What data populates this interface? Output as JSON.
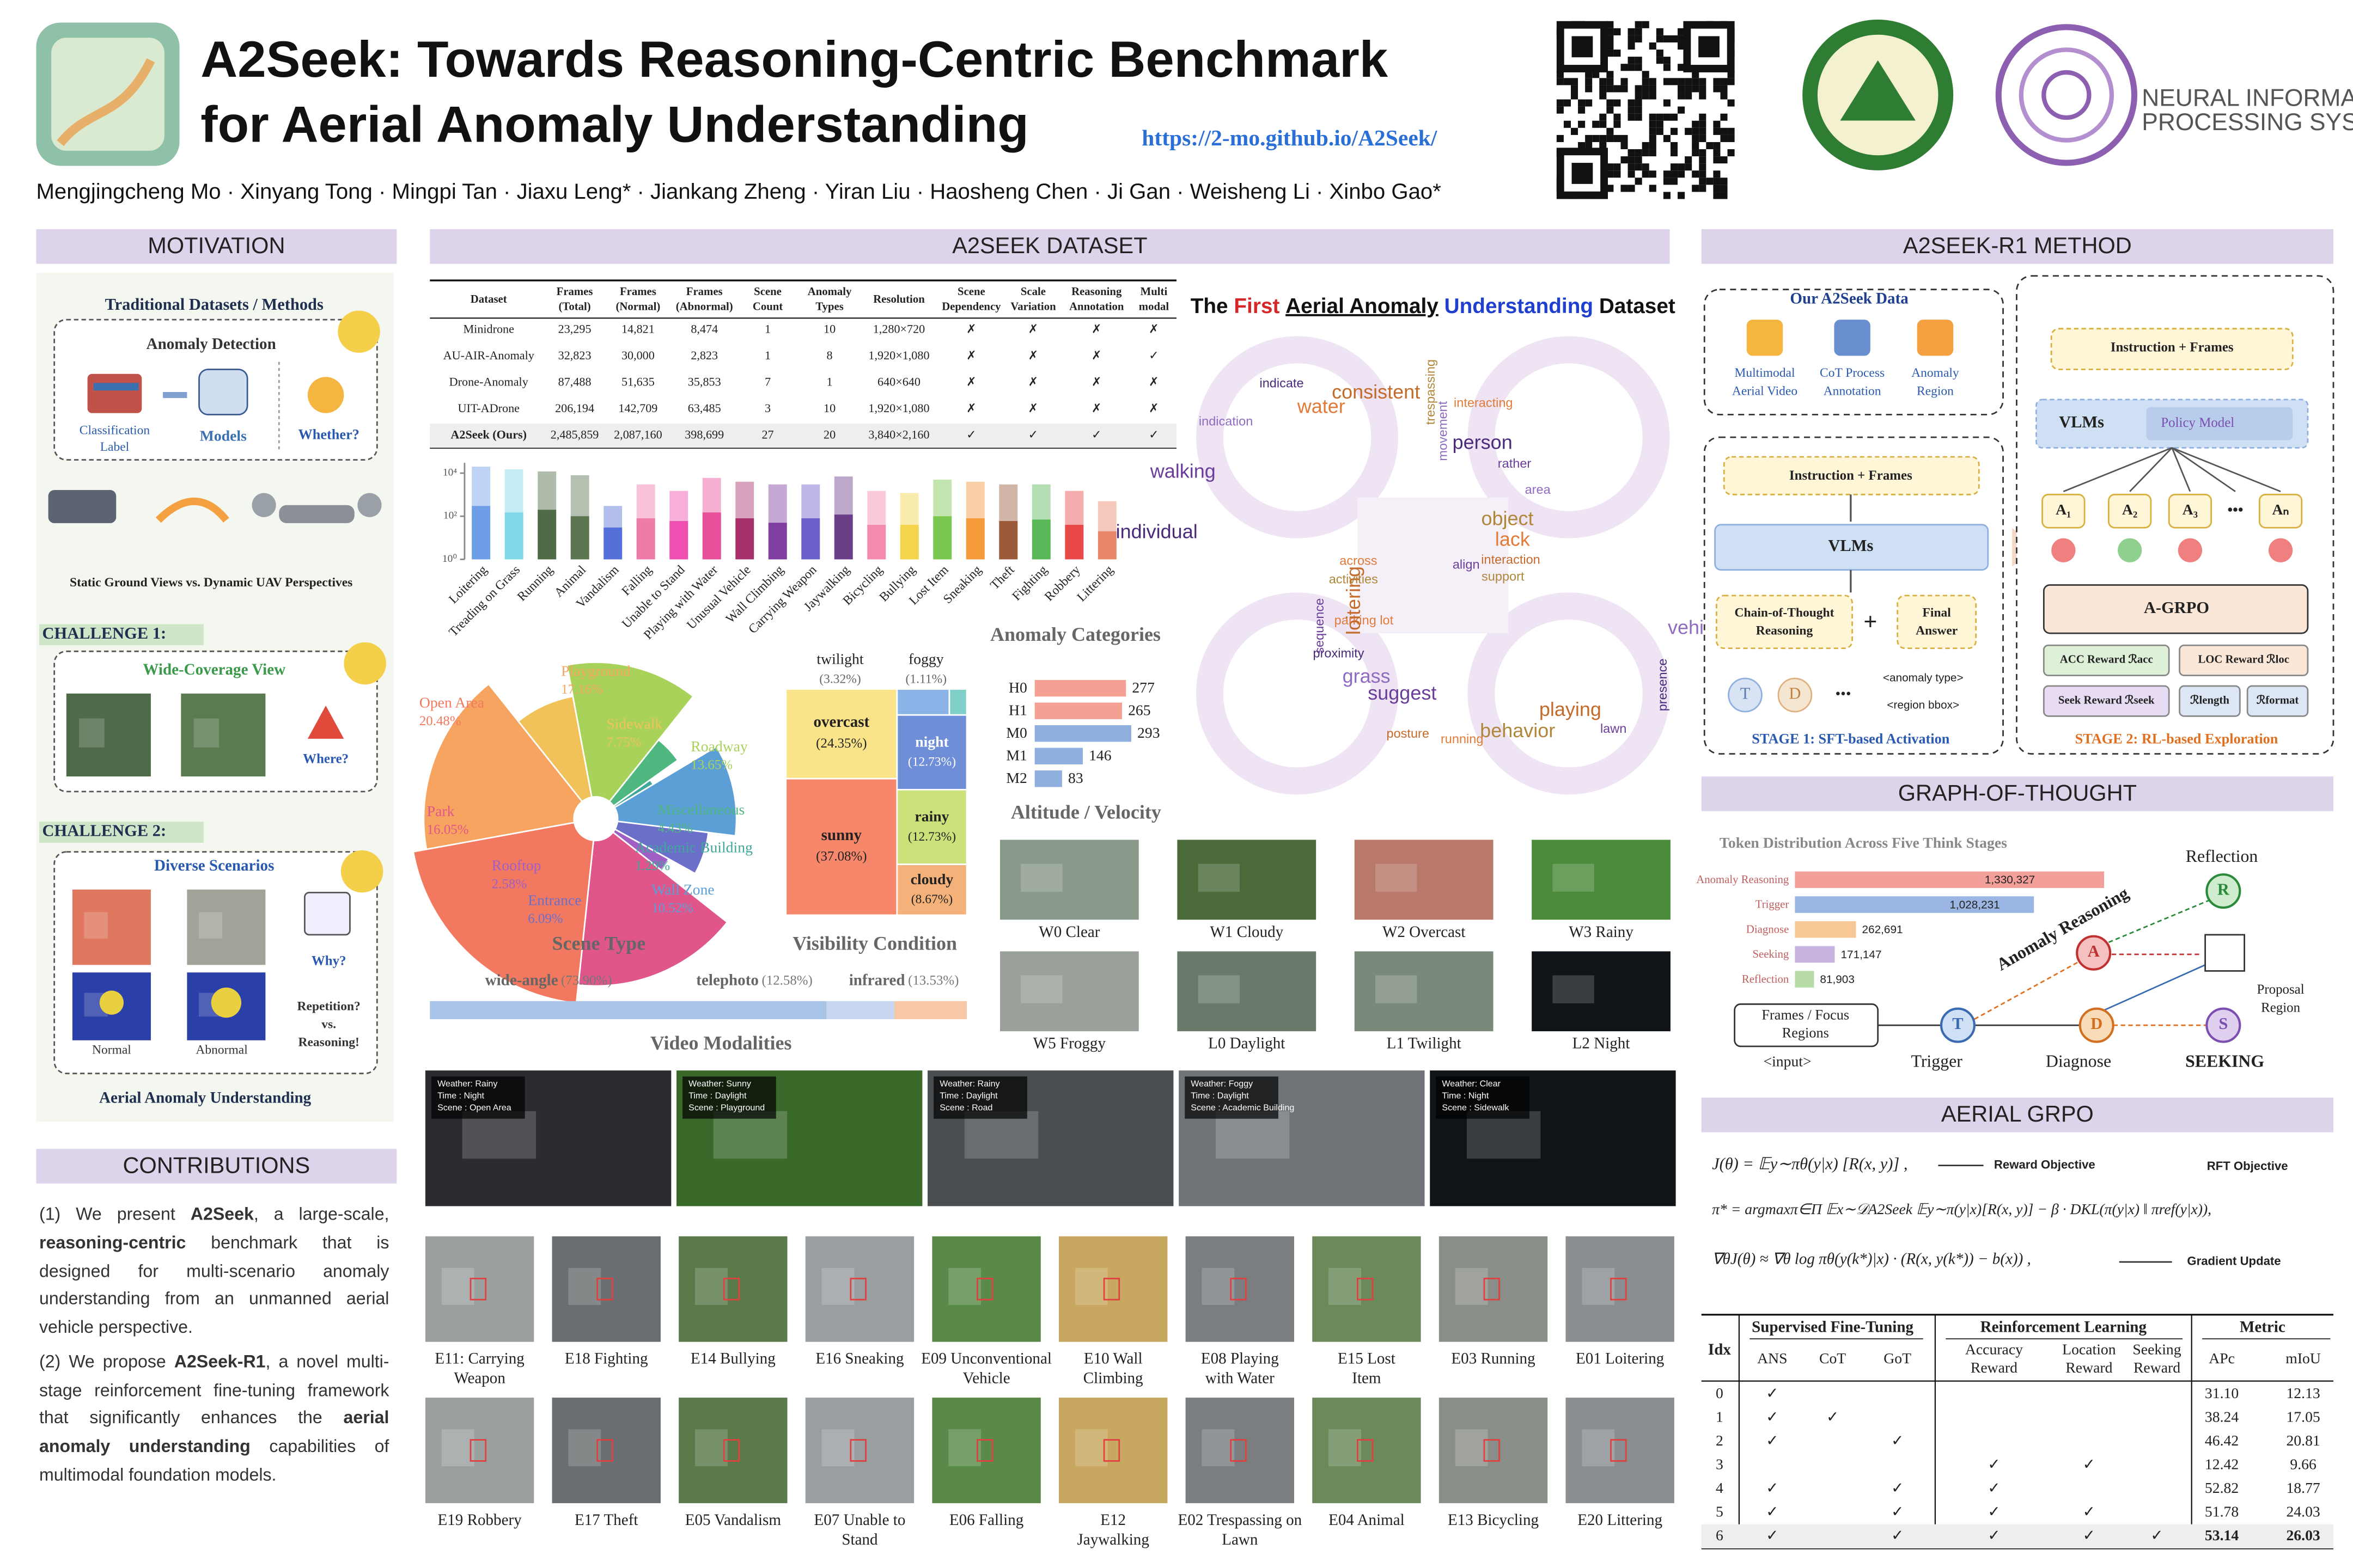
{
  "header": {
    "title_lines": [
      "A2Seek: Towards Reasoning-Centric Benchmark",
      "for Aerial Anomaly Understanding"
    ],
    "url": "https://2-mo.github.io/A2Seek/",
    "authors": "Mengjingcheng Mo · Xinyang Tong · Mingpi Tan · Jiaxu Leng* · Jiankang Zheng · Yiran Liu · Haosheng Chen · Ji Gan · Weisheng Li · Xinbo Gao*",
    "conference": [
      "NEURAL INFORMATION",
      "PROCESSING SYSTEMS"
    ]
  },
  "motivation": {
    "title": "MOTIVATION",
    "traditional": "Traditional Datasets / Methods",
    "detection": "Anomaly Detection",
    "label": [
      "Classification",
      "Label"
    ],
    "models": "Models",
    "whether": "Whether?",
    "views": "Static Ground Views vs. Dynamic UAV Perspectives",
    "challenge1": "CHALLENGE 1:",
    "wide": "Wide-Coverage View",
    "where": "Where?",
    "challenge2": "CHALLENGE 2:",
    "diverse": "Diverse Scenarios",
    "why": "Why?",
    "repetition": [
      "Repetition?",
      "vs.",
      "Reasoning!"
    ],
    "normal": "Normal",
    "abnormal": "Abnormal",
    "footer": "Aerial Anomaly Understanding"
  },
  "contributions": {
    "title": "CONTRIBUTIONS",
    "items": [
      [
        {
          "text": "(1) We present "
        },
        {
          "text": "A2Seek",
          "bold": true
        },
        {
          "text": ", a large-scale, "
        },
        {
          "text": "reasoning-centric",
          "bold": true
        },
        {
          "text": " benchmark that is designed for multi-scenario anomaly understanding from an unmanned aerial vehicle perspective."
        }
      ],
      [
        {
          "text": "(2) We propose "
        },
        {
          "text": "A2Seek-R1",
          "bold": true
        },
        {
          "text": ", a novel multi-stage reinforcement fine-tuning framework that significantly enhances the "
        },
        {
          "text": "aerial anomaly understanding",
          "bold": true
        },
        {
          "text": " capabilities of multimodal foundation models."
        }
      ]
    ]
  },
  "dataset": {
    "title": "A2SEEK DATASET",
    "table": {
      "header": [
        [
          "Dataset"
        ],
        [
          "Frames",
          "(Total)"
        ],
        [
          "Frames",
          "(Normal)"
        ],
        [
          "Frames",
          "(Abnormal)"
        ],
        [
          "Scene",
          "Count"
        ],
        [
          "Anomaly",
          "Types"
        ],
        [
          "Resolution"
        ],
        [
          "Scene",
          "Dependency"
        ],
        [
          "Scale",
          "Variation"
        ],
        [
          "Reasoning",
          "Annotation"
        ],
        [
          "Multi",
          "modal"
        ]
      ],
      "rows": [
        [
          "Minidrone",
          "23,295",
          "14,821",
          "8,474",
          "1",
          "10",
          "1,280×720",
          "✗",
          "✗",
          "✗",
          "✗"
        ],
        [
          "AU-AIR-Anomaly",
          "32,823",
          "30,000",
          "2,823",
          "1",
          "8",
          "1,920×1,080",
          "✗",
          "✗",
          "✗",
          "✓"
        ],
        [
          "Drone-Anomaly",
          "87,488",
          "51,635",
          "35,853",
          "7",
          "1",
          "640×640",
          "✗",
          "✗",
          "✗",
          "✗"
        ],
        [
          "UIT-ADrone",
          "206,194",
          "142,709",
          "63,485",
          "3",
          "10",
          "1,920×1,080",
          "✗",
          "✗",
          "✗",
          "✗"
        ],
        [
          "A2Seek (Ours)",
          "2,485,859",
          "2,087,160",
          "398,699",
          "27",
          "20",
          "3,840×2,160",
          "✓",
          "✓",
          "✓",
          "✓"
        ]
      ]
    },
    "wordcloud_title": [
      {
        "text": "The "
      },
      {
        "text": "First",
        "color": "#d62728"
      },
      {
        "text": " "
      },
      {
        "text": "Aerial Anomaly",
        "underline": true
      },
      {
        "text": " "
      },
      {
        "text": "Understanding",
        "color": "#1f3fcf"
      },
      {
        "text": " Dataset"
      }
    ],
    "words": [
      "align",
      "parking lot",
      "movement",
      "playing",
      "individual",
      "object",
      "suggest",
      "water",
      "vehicle",
      "loitering",
      "person",
      "behavior",
      "walking",
      "lack",
      "grass",
      "consistent",
      "presence",
      "activities",
      "rather",
      "running",
      "indication",
      "interaction",
      "proximity",
      "trespassing",
      "lawn",
      "across",
      "area",
      "posture",
      "indicate",
      "support",
      "sequence",
      "interacting"
    ],
    "weather": [
      [
        "W0 Clear"
      ],
      [
        "W1 Cloudy"
      ],
      [
        "W2 Overcast"
      ],
      [
        "W3 Rainy"
      ],
      [
        "W5 Froggy"
      ],
      [
        "L0 Daylight"
      ],
      [
        "L1 Twilight"
      ],
      [
        "L2 Night"
      ]
    ],
    "videos": [
      [
        "Weather: Rainy",
        "Time : Night",
        "Scene : Open Area"
      ],
      [
        "Weather: Sunny",
        "Time : Daylight",
        "Scene : Playground"
      ],
      [
        "Weather: Rainy",
        "Time : Daylight",
        "Scene : Road"
      ],
      [
        "Weather: Foggy",
        "Time : Daylight",
        "Scene : Academic Building"
      ],
      [
        "Weather: Clear",
        "Time : Night",
        "Scene : Sidewalk"
      ]
    ],
    "examples": [
      [
        "E11: Carrying",
        "Weapon"
      ],
      [
        "E18 Fighting"
      ],
      [
        "E14 Bullying"
      ],
      [
        "E16 Sneaking"
      ],
      [
        "E09 Unconventional",
        "Vehicle"
      ],
      [
        "E10 Wall",
        "Climbing"
      ],
      [
        "E08 Playing",
        "with Water"
      ],
      [
        "E15 Lost",
        "Item"
      ],
      [
        "E03 Running"
      ],
      [
        "E01 Loitering"
      ],
      [
        "E19 Robbery"
      ],
      [
        "E17 Theft"
      ],
      [
        "E05 Vandalism"
      ],
      [
        "E07 Unable to",
        "Stand"
      ],
      [
        "E06 Falling"
      ],
      [
        "E12",
        "Jaywalking"
      ],
      [
        "E02 Trespassing on",
        "Lawn"
      ],
      [
        "E04 Animal"
      ],
      [
        "E13 Bicycling"
      ],
      [
        "E20 Littering"
      ]
    ]
  },
  "chart_data": [
    {
      "type": "bar",
      "title": "Anomaly Categories",
      "log_scale": true,
      "categories": [
        "Loitering",
        "Treading on Grass",
        "Running",
        "Animal",
        "Vandalism",
        "Falling",
        "Unable to Stand",
        "Playing with Water",
        "Unusual Vehicle",
        "Wall Climbing",
        "Carrying Weapon",
        "Jaywalking",
        "Bicycling",
        "Bullying",
        "Lost Item",
        "Sneaking",
        "Theft",
        "Fighting",
        "Robbery",
        "Littering"
      ],
      "colors": [
        "#6f9ee8",
        "#7fd7e8",
        "#4f6b45",
        "#5b7550",
        "#5570d8",
        "#f07aa8",
        "#ef4fb0",
        "#e8509a",
        "#a6306a",
        "#7f3fa0",
        "#6a5fc8",
        "#6b3e8a",
        "#f48ab0",
        "#f4d44a",
        "#7ac850",
        "#f49a3a",
        "#9a5a3a",
        "#58b858",
        "#e84848",
        "#e8866a"
      ],
      "series": [
        {
          "values": [
            20000,
            15000,
            12000,
            8000,
            300,
            3000,
            1500,
            6000,
            4000,
            3000,
            3000,
            7000,
            1500,
            1200,
            5000,
            4000,
            3000,
            3000,
            1500,
            500
          ]
        },
        {
          "values": [
            300,
            150,
            200,
            100,
            30,
            80,
            60,
            150,
            80,
            50,
            80,
            120,
            40,
            40,
            100,
            80,
            60,
            70,
            40,
            20
          ]
        }
      ],
      "ylim": [
        1,
        30000
      ],
      "yticks": [
        {
          "value": 1,
          "label": "10⁰"
        },
        {
          "value": 100,
          "label": "10²"
        },
        {
          "value": 10000,
          "label": "10⁴"
        }
      ]
    },
    {
      "type": "rose",
      "title": "Scene Type",
      "categories": [
        "Playground",
        "Sidewalk",
        "Roadway",
        "Miscellaneous",
        "Academic Building",
        "Wall Zone",
        "Entrance",
        "Rooftop",
        "Park",
        "Open Area"
      ],
      "values": [
        17.16,
        7.75,
        13.65,
        4.43,
        1.29,
        10.52,
        6.09,
        2.58,
        16.05,
        20.48
      ],
      "value_labels": [
        "17.16%",
        "7.75%",
        "13.65%",
        "4.43%",
        "1.29%",
        "10.52%",
        "6.09%",
        "2.58%",
        "16.05%",
        "20.48%"
      ],
      "colors": [
        "#f6a460",
        "#f2c25a",
        "#a8d25a",
        "#4fb880",
        "#3fa89a",
        "#5b9fd6",
        "#6c6fc9",
        "#9f5fc4",
        "#e0568a",
        "#f2795f"
      ]
    },
    {
      "type": "treemap",
      "title": "Visibility Condition",
      "categories": [
        "overcast",
        "sunny",
        "twilight",
        "foggy",
        "night",
        "rainy",
        "cloudy"
      ],
      "values": [
        24.35,
        37.08,
        3.32,
        1.11,
        12.73,
        12.73,
        8.67
      ],
      "value_labels": [
        "(24.35%)",
        "(37.08%)",
        "(3.32%)",
        "(1.11%)",
        "(12.73%)",
        "(12.73%)",
        "(8.67%)"
      ],
      "colors": [
        "#fbe38a",
        "#f7876a",
        "#8ab4e8",
        "#7fd0c8",
        "#6f8ed8",
        "#cce17a",
        "#f4b27a"
      ]
    },
    {
      "type": "hbar",
      "title": "Altitude / Velocity",
      "categories": [
        "H0",
        "H1",
        "M0",
        "M1",
        "M2"
      ],
      "values": [
        277,
        265,
        293,
        146,
        83
      ],
      "colors": [
        "#f4a093",
        "#f4a093",
        "#8fb0de",
        "#8fb0de",
        "#8fb0de"
      ]
    },
    {
      "type": "stacked_hbar",
      "title": "Video Modalities",
      "categories": [
        "wide-angle",
        "telephoto",
        "infrared"
      ],
      "values": [
        73.9,
        12.58,
        13.53
      ],
      "value_labels": [
        "(73.90%)",
        "(12.58%)",
        "(13.53%)"
      ],
      "colors": [
        "#aac4e8",
        "#c7d6ee",
        "#f7c7a8"
      ]
    },
    {
      "type": "hbar",
      "title": "Token Distribution Across Five Think Stages",
      "categories": [
        "Anomaly Reasoning",
        "Trigger",
        "Diagnose",
        "Seeking",
        "Reflection"
      ],
      "values": [
        1330327,
        1028231,
        262691,
        171147,
        81903
      ],
      "value_labels": [
        "1,330,327",
        "1,028,231",
        "262,691",
        "171,147",
        "81,903"
      ],
      "colors": [
        "#f4a09a",
        "#9cb6e3",
        "#f7c896",
        "#c8b2e0",
        "#b7dba6"
      ]
    }
  ],
  "method": {
    "title": "A2SEEK-R1 METHOD",
    "data_title": "Our A2Seek Data",
    "data_items": [
      [
        "Multimodal",
        "Aerial Video"
      ],
      [
        "CoT Process",
        "Annotation"
      ],
      [
        "Anomaly",
        "Region"
      ]
    ],
    "stage1": {
      "input": "Instruction + Frames",
      "model": "VLMs",
      "cot": [
        "Chain-of-Thought",
        "Reasoning"
      ],
      "plus": "+",
      "answer": [
        "Final",
        "Answer"
      ],
      "tags": [
        "<anomaly type>",
        "<region bbox>"
      ],
      "tokens": [
        "T",
        "D",
        "•••"
      ],
      "label": "STAGE 1: SFT-based Activation"
    },
    "stage2": {
      "input": "Instruction + Frames",
      "model": "VLMs",
      "policy": "Policy Model",
      "answers": [
        "A₁",
        "A₂",
        "A₃",
        "•••",
        "Aₙ"
      ],
      "algo": "A-GRPO",
      "rewards": [
        "ACC Reward ℛacc",
        "LOC Reward ℛloc",
        "Seek Reward ℛseek",
        "ℛlength",
        "ℛformat"
      ],
      "label": "STAGE 2: RL-based Exploration"
    }
  },
  "got": {
    "title": "GRAPH-OF-THOUGHT",
    "input": [
      "Frames / Focus",
      "Regions"
    ],
    "input_tag": "<input>",
    "nodes": [
      "T",
      "D",
      "A",
      "R",
      "S"
    ],
    "node_labels": [
      "Trigger",
      "Diagnose",
      "Anomaly Reasoning",
      "Reflection",
      "SEEKING"
    ],
    "proposal": [
      "Proposal",
      "Region"
    ]
  },
  "grpo": {
    "title": "AERIAL GRPO",
    "formulas": [
      "J(θ) = 𝔼y∼πθ(y|x) [R(x, y)] ,",
      "π* = argmaxπ∈Π 𝔼x∼𝒟A2Seek 𝔼y∼π(y|x)[R(x, y)] − β · DKL(π(y|x) ‖ πref(y|x)),",
      "∇θJ(θ) ≈ ∇θ log πθ(y(k*)|x) · (R(x, y(k*)) − b(x)) ,"
    ],
    "notes": [
      "Reward Objective",
      "RFT Objective",
      "Gradient Update"
    ]
  },
  "results": {
    "groups": [
      "Idx",
      "Supervised Fine-Tuning",
      "Reinforcement Learning",
      "Metric"
    ],
    "columns": [
      [
        "ANS"
      ],
      [
        "CoT"
      ],
      [
        "GoT"
      ],
      [
        "Accuracy",
        "Reward"
      ],
      [
        "Location",
        "Reward"
      ],
      [
        "Seeking",
        "Reward"
      ],
      [
        "APc"
      ],
      [
        "mIoU"
      ]
    ],
    "rows": [
      [
        "0",
        "✓",
        null,
        null,
        null,
        null,
        null,
        "31.10",
        "12.13"
      ],
      [
        "1",
        "✓",
        "✓",
        null,
        null,
        null,
        null,
        "38.24",
        "17.05"
      ],
      [
        "2",
        "✓",
        null,
        "✓",
        null,
        null,
        null,
        "46.42",
        "20.81"
      ],
      [
        "3",
        null,
        null,
        null,
        "✓",
        "✓",
        null,
        "12.42",
        "9.66"
      ],
      [
        "4",
        "✓",
        null,
        "✓",
        "✓",
        null,
        null,
        "52.82",
        "18.77"
      ],
      [
        "5",
        "✓",
        null,
        "✓",
        "✓",
        "✓",
        null,
        "51.78",
        "24.03"
      ],
      [
        "6",
        "✓",
        null,
        "✓",
        "✓",
        "✓",
        "✓",
        "53.14",
        "26.03"
      ]
    ]
  }
}
